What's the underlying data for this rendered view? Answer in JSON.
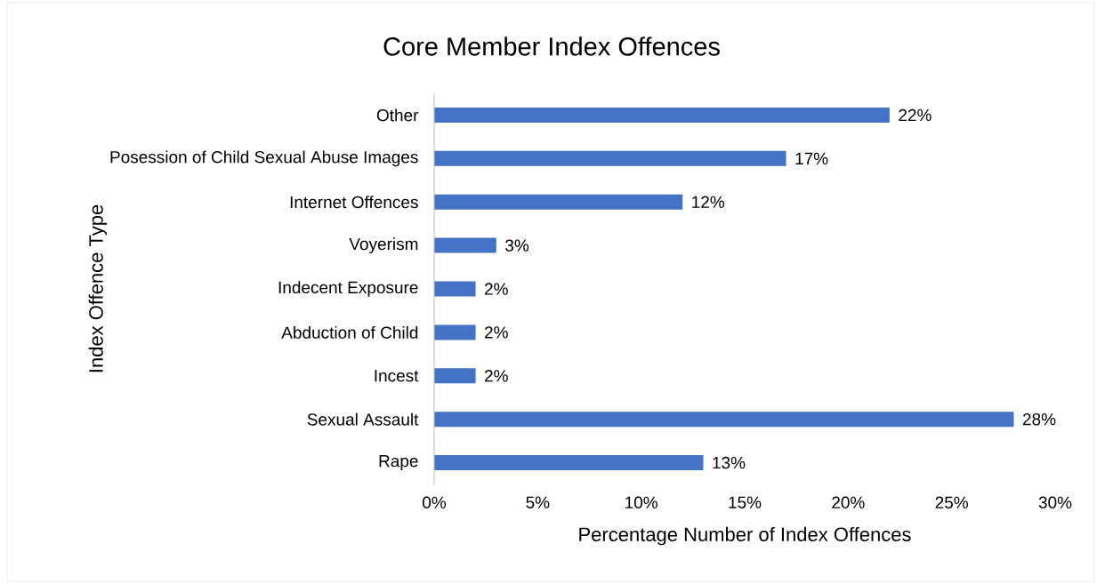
{
  "chart_data": {
    "type": "bar",
    "orientation": "horizontal",
    "title": "Core Member Index Offences",
    "xlabel": "Percentage Number of Index Offences",
    "ylabel": "Index Offence Type",
    "categories": [
      "Other",
      "Posession of Child Sexual Abuse Images",
      "Internet Offences",
      "Voyerism",
      "Indecent Exposure",
      "Abduction of Child",
      "Incest",
      "Sexual Assault",
      "Rape"
    ],
    "values": [
      22,
      17,
      12,
      3,
      2,
      2,
      2,
      28,
      13
    ],
    "value_labels": [
      "22%",
      "17%",
      "12%",
      "3%",
      "2%",
      "2%",
      "2%",
      "28%",
      "13%"
    ],
    "color": "#4472c4",
    "xlim": [
      0,
      30
    ],
    "xticks": [
      {
        "value": 0,
        "label": "0%"
      },
      {
        "value": 5,
        "label": "5%"
      },
      {
        "value": 10,
        "label": "10%"
      },
      {
        "value": 15,
        "label": "15%"
      },
      {
        "value": 20,
        "label": "20%"
      },
      {
        "value": 25,
        "label": "25%"
      },
      {
        "value": 30,
        "label": "30%"
      }
    ]
  }
}
